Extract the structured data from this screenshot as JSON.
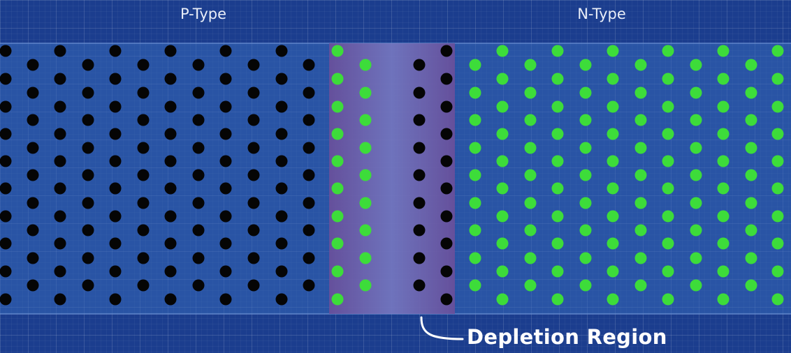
{
  "labels": {
    "p_type": "P-Type",
    "n_type": "N-Type",
    "depletion": "Depletion Region"
  },
  "colors": {
    "background": "#1b3d8e",
    "slab": "#2f5db0",
    "depletion_region": "#6a5a9c",
    "hole": "#050505",
    "electron": "#3ddc3a",
    "callout": "#ffffff"
  }
}
